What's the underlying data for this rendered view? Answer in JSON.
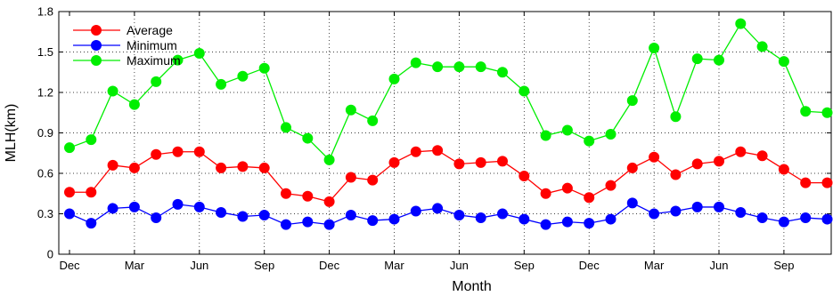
{
  "chart_data": {
    "type": "line",
    "xlabel": "Month",
    "ylabel": "MLH(km)",
    "ylim": [
      0,
      1.8
    ],
    "yticks": [
      "0",
      "0.3",
      "0.6",
      "0.9",
      "1.2",
      "1.5",
      "1.8"
    ],
    "xtick_labels": [
      "Dec",
      "Mar",
      "Jun",
      "Sep",
      "Dec",
      "Mar",
      "Jun",
      "Sep",
      "Dec",
      "Mar",
      "Jun",
      "Sep"
    ],
    "grid": true,
    "legend_position": "top-left",
    "series": [
      {
        "name": "Average",
        "color": "#ff0000",
        "values": [
          0.46,
          0.46,
          0.66,
          0.64,
          0.74,
          0.76,
          0.76,
          0.64,
          0.65,
          0.64,
          0.45,
          0.43,
          0.39,
          0.57,
          0.55,
          0.68,
          0.76,
          0.77,
          0.67,
          0.68,
          0.69,
          0.58,
          0.45,
          0.49,
          0.42,
          0.51,
          0.64,
          0.72,
          0.59,
          0.67,
          0.69,
          0.76,
          0.73,
          0.63,
          0.53,
          0.53
        ]
      },
      {
        "name": "Minimum",
        "color": "#0000ff",
        "values": [
          0.3,
          0.23,
          0.34,
          0.35,
          0.27,
          0.37,
          0.35,
          0.31,
          0.28,
          0.29,
          0.22,
          0.24,
          0.22,
          0.29,
          0.25,
          0.26,
          0.32,
          0.34,
          0.29,
          0.27,
          0.3,
          0.26,
          0.22,
          0.24,
          0.23,
          0.26,
          0.38,
          0.3,
          0.32,
          0.35,
          0.35,
          0.31,
          0.27,
          0.24,
          0.27,
          0.26
        ]
      },
      {
        "name": "Maximum",
        "color": "#00ee00",
        "values": [
          0.79,
          0.85,
          1.21,
          1.11,
          1.28,
          1.44,
          1.49,
          1.26,
          1.32,
          1.38,
          0.94,
          0.86,
          0.7,
          1.07,
          0.99,
          1.3,
          1.42,
          1.39,
          1.39,
          1.39,
          1.35,
          1.21,
          0.88,
          0.92,
          0.84,
          0.89,
          1.14,
          1.53,
          1.02,
          1.45,
          1.44,
          1.71,
          1.54,
          1.43,
          1.06,
          1.05
        ]
      }
    ]
  }
}
